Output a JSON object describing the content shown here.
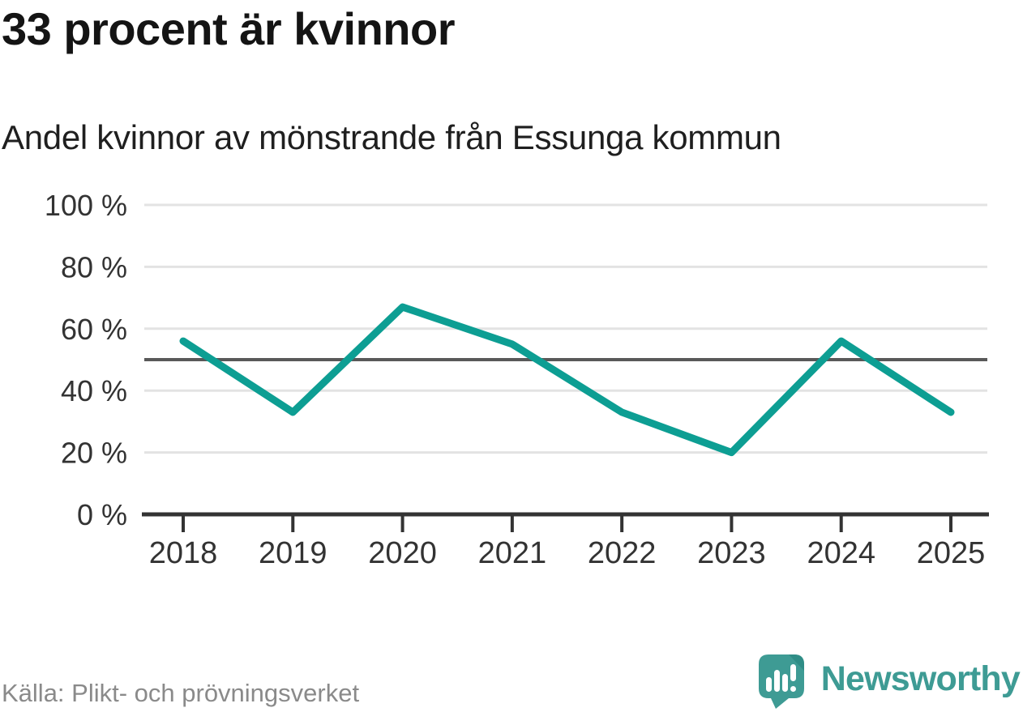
{
  "chart_data": {
    "type": "line",
    "title": "33 procent är kvinnor",
    "subtitle": "Andel kvinnor av mönstrande från Essunga kommun",
    "categories": [
      "2018",
      "2019",
      "2020",
      "2021",
      "2022",
      "2023",
      "2024",
      "2025"
    ],
    "series": [
      {
        "name": "Andel kvinnor av mönstrande",
        "values": [
          56,
          33,
          67,
          55,
          33,
          20,
          56,
          33
        ]
      }
    ],
    "ylim": [
      0,
      100
    ],
    "yticks": [
      0,
      20,
      40,
      60,
      80,
      100
    ],
    "ytick_suffix": " %",
    "reference_line_y": 50,
    "grid": true,
    "legend_position": "none",
    "xlabel": "",
    "ylabel": ""
  },
  "colors": {
    "line": "#0D9E93",
    "reference_line": "#595959",
    "gridline": "#E3E3E3",
    "axis": "#333333",
    "tick_label": "#333333",
    "brand_teal": "#3E9B94",
    "brand_shade": "#2F8D86"
  },
  "footer": {
    "source": "Källa: Plikt- och prövningsverket",
    "brand_name": "Newsworthy"
  },
  "icons": {
    "logo_mark": "newsworthy-speech-bubble-barchart-icon"
  }
}
